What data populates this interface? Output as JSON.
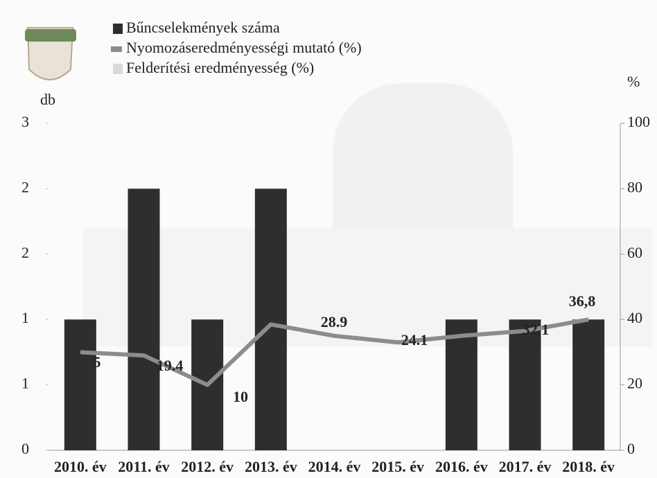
{
  "chart_data": {
    "type": "bar",
    "y_label": "db",
    "y2_label": "%",
    "categories": [
      "2010. év",
      "2011. év",
      "2012. év",
      "2013. év",
      "2014. év",
      "2015. év",
      "2016. év",
      "2017. év",
      "2018. év"
    ],
    "series": [
      {
        "name": "Bűncselekmények száma",
        "color": "#2e2e2e",
        "type": "bar",
        "values": [
          1,
          2,
          1,
          2,
          0,
          0,
          1,
          1,
          1
        ]
      },
      {
        "name": "Nyomozáseredményességi mutató (%)",
        "color": "#8c8c8c",
        "type": "line",
        "axis": "y2",
        "values": [
          30,
          29,
          20,
          38.5,
          35,
          33,
          35,
          36.5,
          40
        ]
      },
      {
        "name": "Felderítési eredményesség (%)",
        "color": "#d9d9d9",
        "type": "area",
        "axis": "y2",
        "values": [
          null,
          null,
          null,
          null,
          null,
          null,
          null,
          null,
          null
        ]
      }
    ],
    "annotations": [
      "5",
      "19.4",
      "10",
      "28.9",
      "24.1",
      "32.1",
      "36,8"
    ],
    "ylim": [
      0,
      2.5
    ],
    "yticks": [
      0,
      {
        "value": 0.5,
        "label": "1"
      },
      1,
      {
        "value": 1.5,
        "label": "2"
      },
      2,
      {
        "value": 2.5,
        "label": "3"
      }
    ],
    "y2lim": [
      0,
      100
    ],
    "y2ticks": [
      0,
      20,
      40,
      60,
      80,
      100
    ],
    "grid": false
  }
}
